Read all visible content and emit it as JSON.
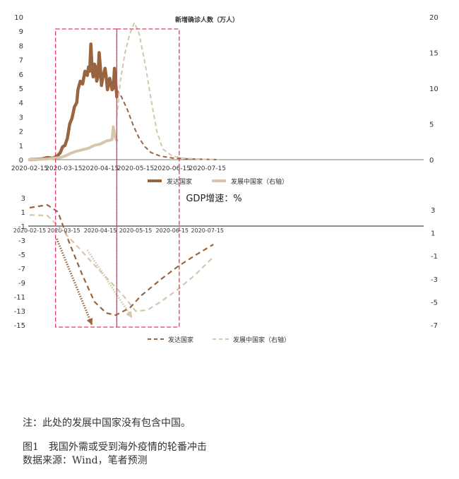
{
  "chart_data": [
    {
      "type": "line",
      "title": "新增确诊人数（万人）",
      "x_ticks": [
        "2020-02-15",
        "2020-03-15",
        "2020-04-15",
        "2020-05-15",
        "2020-06-15",
        "2020-07-15"
      ],
      "ylim_left": [
        0,
        10
      ],
      "yticks_left": [
        "0",
        "1",
        "2",
        "3",
        "4",
        "5",
        "6",
        "7",
        "8",
        "9",
        "10"
      ],
      "ylim_right": [
        0,
        20
      ],
      "yticks_right": [
        "0",
        "5",
        "10",
        "15",
        "20"
      ],
      "grid": false,
      "legend_position": "bottom",
      "series": [
        {
          "name": "发达国家",
          "axis": "left",
          "color": "#98653f",
          "style": "solid",
          "points": [
            [
              "2020-02-15",
              0
            ],
            [
              "2020-02-25",
              0.05
            ],
            [
              "2020-03-01",
              0.15
            ],
            [
              "2020-03-06",
              0.1
            ],
            [
              "2020-03-10",
              0.3
            ],
            [
              "2020-03-12",
              0.5
            ],
            [
              "2020-03-14",
              0.9
            ],
            [
              "2020-03-16",
              1.0
            ],
            [
              "2020-03-18",
              1.5
            ],
            [
              "2020-03-20",
              2.5
            ],
            [
              "2020-03-22",
              2.9
            ],
            [
              "2020-03-24",
              3.7
            ],
            [
              "2020-03-26",
              4.0
            ],
            [
              "2020-03-27",
              4.9
            ],
            [
              "2020-03-29",
              5.5
            ],
            [
              "2020-03-31",
              5.3
            ],
            [
              "2020-04-02",
              6.2
            ],
            [
              "2020-04-04",
              5.9
            ],
            [
              "2020-04-05",
              6.5
            ],
            [
              "2020-04-06",
              6.2
            ],
            [
              "2020-04-07",
              8.1
            ],
            [
              "2020-04-08",
              6.3
            ],
            [
              "2020-04-09",
              5.8
            ],
            [
              "2020-04-10",
              6.7
            ],
            [
              "2020-04-11",
              6.5
            ],
            [
              "2020-04-12",
              5.5
            ],
            [
              "2020-04-13",
              5.8
            ],
            [
              "2020-04-14",
              7.5
            ],
            [
              "2020-04-15",
              6.5
            ],
            [
              "2020-04-16",
              5.2
            ],
            [
              "2020-04-17",
              5.7
            ],
            [
              "2020-04-19",
              6.4
            ],
            [
              "2020-04-20",
              5.8
            ],
            [
              "2020-04-21",
              4.9
            ],
            [
              "2020-04-23",
              5.7
            ],
            [
              "2020-04-25",
              4.9
            ],
            [
              "2020-04-26",
              5.0
            ],
            [
              "2020-04-27",
              6.4
            ],
            [
              "2020-04-28",
              5.5
            ],
            [
              "2020-04-29",
              4.4
            ]
          ]
        },
        {
          "name": "发达国家",
          "axis": "left",
          "color": "#98653f",
          "style": "dashed",
          "points": [
            [
              "2020-04-29",
              4.9
            ],
            [
              "2020-05-03",
              4.4
            ],
            [
              "2020-05-08",
              3.5
            ],
            [
              "2020-05-13",
              2.4
            ],
            [
              "2020-05-18",
              1.5
            ],
            [
              "2020-05-23",
              0.9
            ],
            [
              "2020-05-28",
              0.5
            ],
            [
              "2020-06-05",
              0.25
            ],
            [
              "2020-06-15",
              0.12
            ],
            [
              "2020-06-30",
              0.05
            ],
            [
              "2020-07-15",
              0.02
            ],
            [
              "2020-07-25",
              0
            ]
          ]
        },
        {
          "name": "发展中国家（右轴）",
          "axis": "right",
          "color": "#d7c6aa",
          "style": "solid",
          "points": [
            [
              "2020-02-15",
              0
            ],
            [
              "2020-03-01",
              0.1
            ],
            [
              "2020-03-12",
              0.3
            ],
            [
              "2020-03-16",
              0.5
            ],
            [
              "2020-03-21",
              0.9
            ],
            [
              "2020-03-26",
              1.2
            ],
            [
              "2020-03-31",
              1.4
            ],
            [
              "2020-04-05",
              1.6
            ],
            [
              "2020-04-10",
              2.0
            ],
            [
              "2020-04-15",
              2.2
            ],
            [
              "2020-04-20",
              2.6
            ],
            [
              "2020-04-25",
              2.8
            ],
            [
              "2020-04-26",
              4.6
            ],
            [
              "2020-04-28",
              3.0
            ],
            [
              "2020-04-29",
              2.7
            ]
          ]
        },
        {
          "name": "发展中国家（右轴）",
          "axis": "right",
          "color": "#d7c6aa",
          "style": "dashed",
          "points": [
            [
              "2020-04-29",
              6.0
            ],
            [
              "2020-05-02",
              11.0
            ],
            [
              "2020-05-06",
              15.0
            ],
            [
              "2020-05-10",
              17.6
            ],
            [
              "2020-05-14",
              19.2
            ],
            [
              "2020-05-18",
              17.6
            ],
            [
              "2020-05-23",
              13.5
            ],
            [
              "2020-05-28",
              8.5
            ],
            [
              "2020-06-02",
              4.0
            ],
            [
              "2020-06-07",
              1.5
            ],
            [
              "2020-06-15",
              0.5
            ],
            [
              "2020-06-25",
              0.2
            ],
            [
              "2020-07-10",
              0.05
            ],
            [
              "2020-07-25",
              0
            ]
          ]
        }
      ],
      "legend": [
        "发达国家",
        "发展中国家（右轴）"
      ]
    },
    {
      "type": "line",
      "title": "GDP增速：%",
      "x_ticks": [
        "2020-02-15",
        "2020-03-15",
        "2020-04-15",
        "2020-05-15",
        "2020-06-15",
        "2020-07-15"
      ],
      "ylim_left": [
        -15,
        3
      ],
      "yticks_left": [
        "3",
        "1",
        "-1",
        "-3",
        "-5",
        "-7",
        "-9",
        "-11",
        "-13",
        "-15"
      ],
      "ylim_right": [
        -7,
        3
      ],
      "yticks_right": [
        "3",
        "1",
        "-1",
        "-3",
        "-5",
        "-7"
      ],
      "grid": false,
      "legend_position": "bottom",
      "series": [
        {
          "name": "发达国家",
          "axis": "left",
          "color": "#98653f",
          "style": "dashed",
          "points": [
            [
              "2020-02-15",
              1.6
            ],
            [
              "2020-03-01",
              2.0
            ],
            [
              "2020-03-10",
              1.0
            ],
            [
              "2020-03-20",
              -3.5
            ],
            [
              "2020-03-31",
              -8.0
            ],
            [
              "2020-04-10",
              -11.7
            ],
            [
              "2020-04-20",
              -13.3
            ],
            [
              "2020-04-28",
              -13.6
            ],
            [
              "2020-05-10",
              -12.6
            ],
            [
              "2020-05-20",
              -10.8
            ],
            [
              "2020-06-05",
              -8.6
            ],
            [
              "2020-06-20",
              -6.7
            ],
            [
              "2020-07-05",
              -5.1
            ],
            [
              "2020-07-20",
              -3.6
            ]
          ]
        },
        {
          "name": "发展中国家（右轴）",
          "axis": "right",
          "color": "#d7c6aa",
          "style": "dashed",
          "points": [
            [
              "2020-02-15",
              2.55
            ],
            [
              "2020-03-01",
              2.5
            ],
            [
              "2020-03-10",
              1.6
            ],
            [
              "2020-03-25",
              0.0
            ],
            [
              "2020-04-10",
              -1.8
            ],
            [
              "2020-04-25",
              -3.4
            ],
            [
              "2020-05-05",
              -4.5
            ],
            [
              "2020-05-15",
              -5.8
            ],
            [
              "2020-05-25",
              -5.7
            ],
            [
              "2020-06-05",
              -5.0
            ],
            [
              "2020-06-20",
              -3.9
            ],
            [
              "2020-07-05",
              -2.6
            ],
            [
              "2020-07-20",
              -1.1
            ]
          ]
        }
      ],
      "arrows": [
        {
          "color": "#98653f",
          "from": [
            "2020-03-09",
            -2.8
          ],
          "to": [
            "2020-04-08",
            -15.0
          ]
        },
        {
          "color": "#d7c6aa",
          "from": [
            "2020-04-04",
            -4.4
          ],
          "to": [
            "2020-05-12",
            -14.0
          ]
        }
      ],
      "legend": [
        "发达国家",
        "发展中国家（右轴）"
      ]
    }
  ],
  "highlight_boxes": [
    {
      "from": "2020-03-08",
      "to": "2020-04-29"
    },
    {
      "from": "2020-04-29",
      "to": "2020-06-21"
    }
  ],
  "highlight_color": "#e03c64",
  "notes": {
    "note": "注：此处的发展中国家没有包含中国。",
    "caption": "图1　我国外需或受到海外疫情的轮番冲击",
    "source": "数据来源：Wind，笔者预测"
  }
}
